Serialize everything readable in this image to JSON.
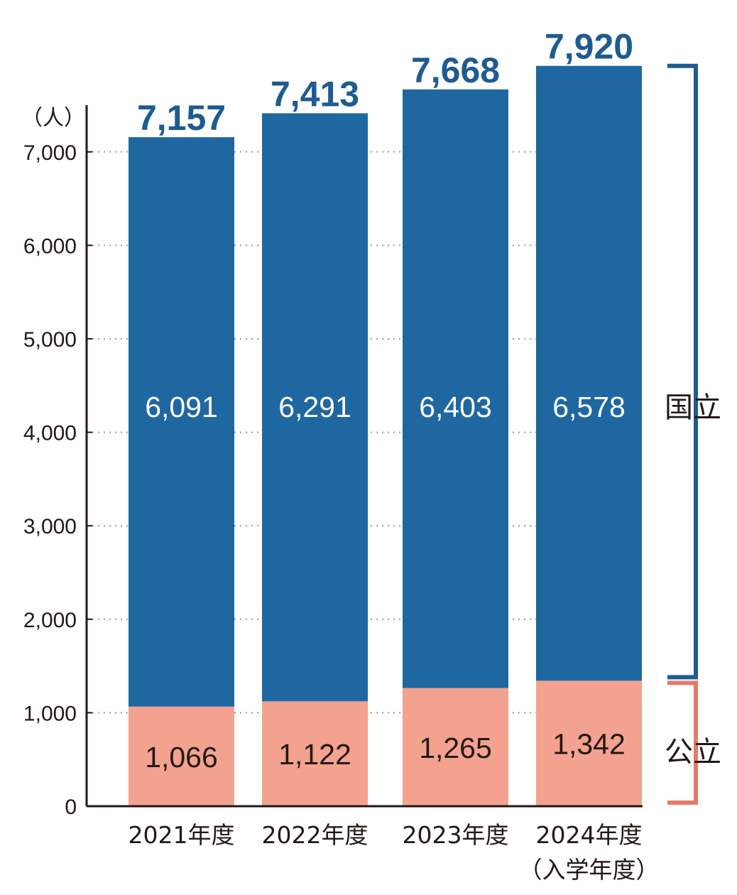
{
  "chart_data": {
    "type": "bar",
    "stacked": true,
    "unit_label": "（人）",
    "categories": [
      "2021年度",
      "2022年度",
      "2023年度",
      "2024年度"
    ],
    "category_notes": [
      "",
      "",
      "",
      "（入学年度）"
    ],
    "series": [
      {
        "name": "公立",
        "values": [
          1066,
          1122,
          1265,
          1342
        ],
        "color": "#f2a28f",
        "label_color": "#231815"
      },
      {
        "name": "国立",
        "values": [
          6091,
          6291,
          6403,
          6578
        ],
        "color": "#1f67a0",
        "label_color": "#ffffff"
      }
    ],
    "totals": [
      7157,
      7413,
      7668,
      7920
    ],
    "total_labels": [
      "7,157",
      "7,413",
      "7,668",
      "7,920"
    ],
    "value_labels": {
      "公立": [
        "1,066",
        "1,122",
        "1,265",
        "1,342"
      ],
      "国立": [
        "6,091",
        "6,291",
        "6,403",
        "6,578"
      ]
    },
    "yticks": [
      0,
      1000,
      2000,
      3000,
      4000,
      5000,
      6000,
      7000
    ],
    "ytick_labels": [
      "0",
      "1,000",
      "2,000",
      "3,000",
      "4,000",
      "5,000",
      "6,000",
      "7,000"
    ],
    "ylim": [
      0,
      7500
    ],
    "grid": "dotted horizontal",
    "legend": "right-side brackets",
    "colors": {
      "total_label": "#1e5b91",
      "bracket_top": "#1e5b91",
      "bracket_bottom": "#e57a66"
    }
  }
}
